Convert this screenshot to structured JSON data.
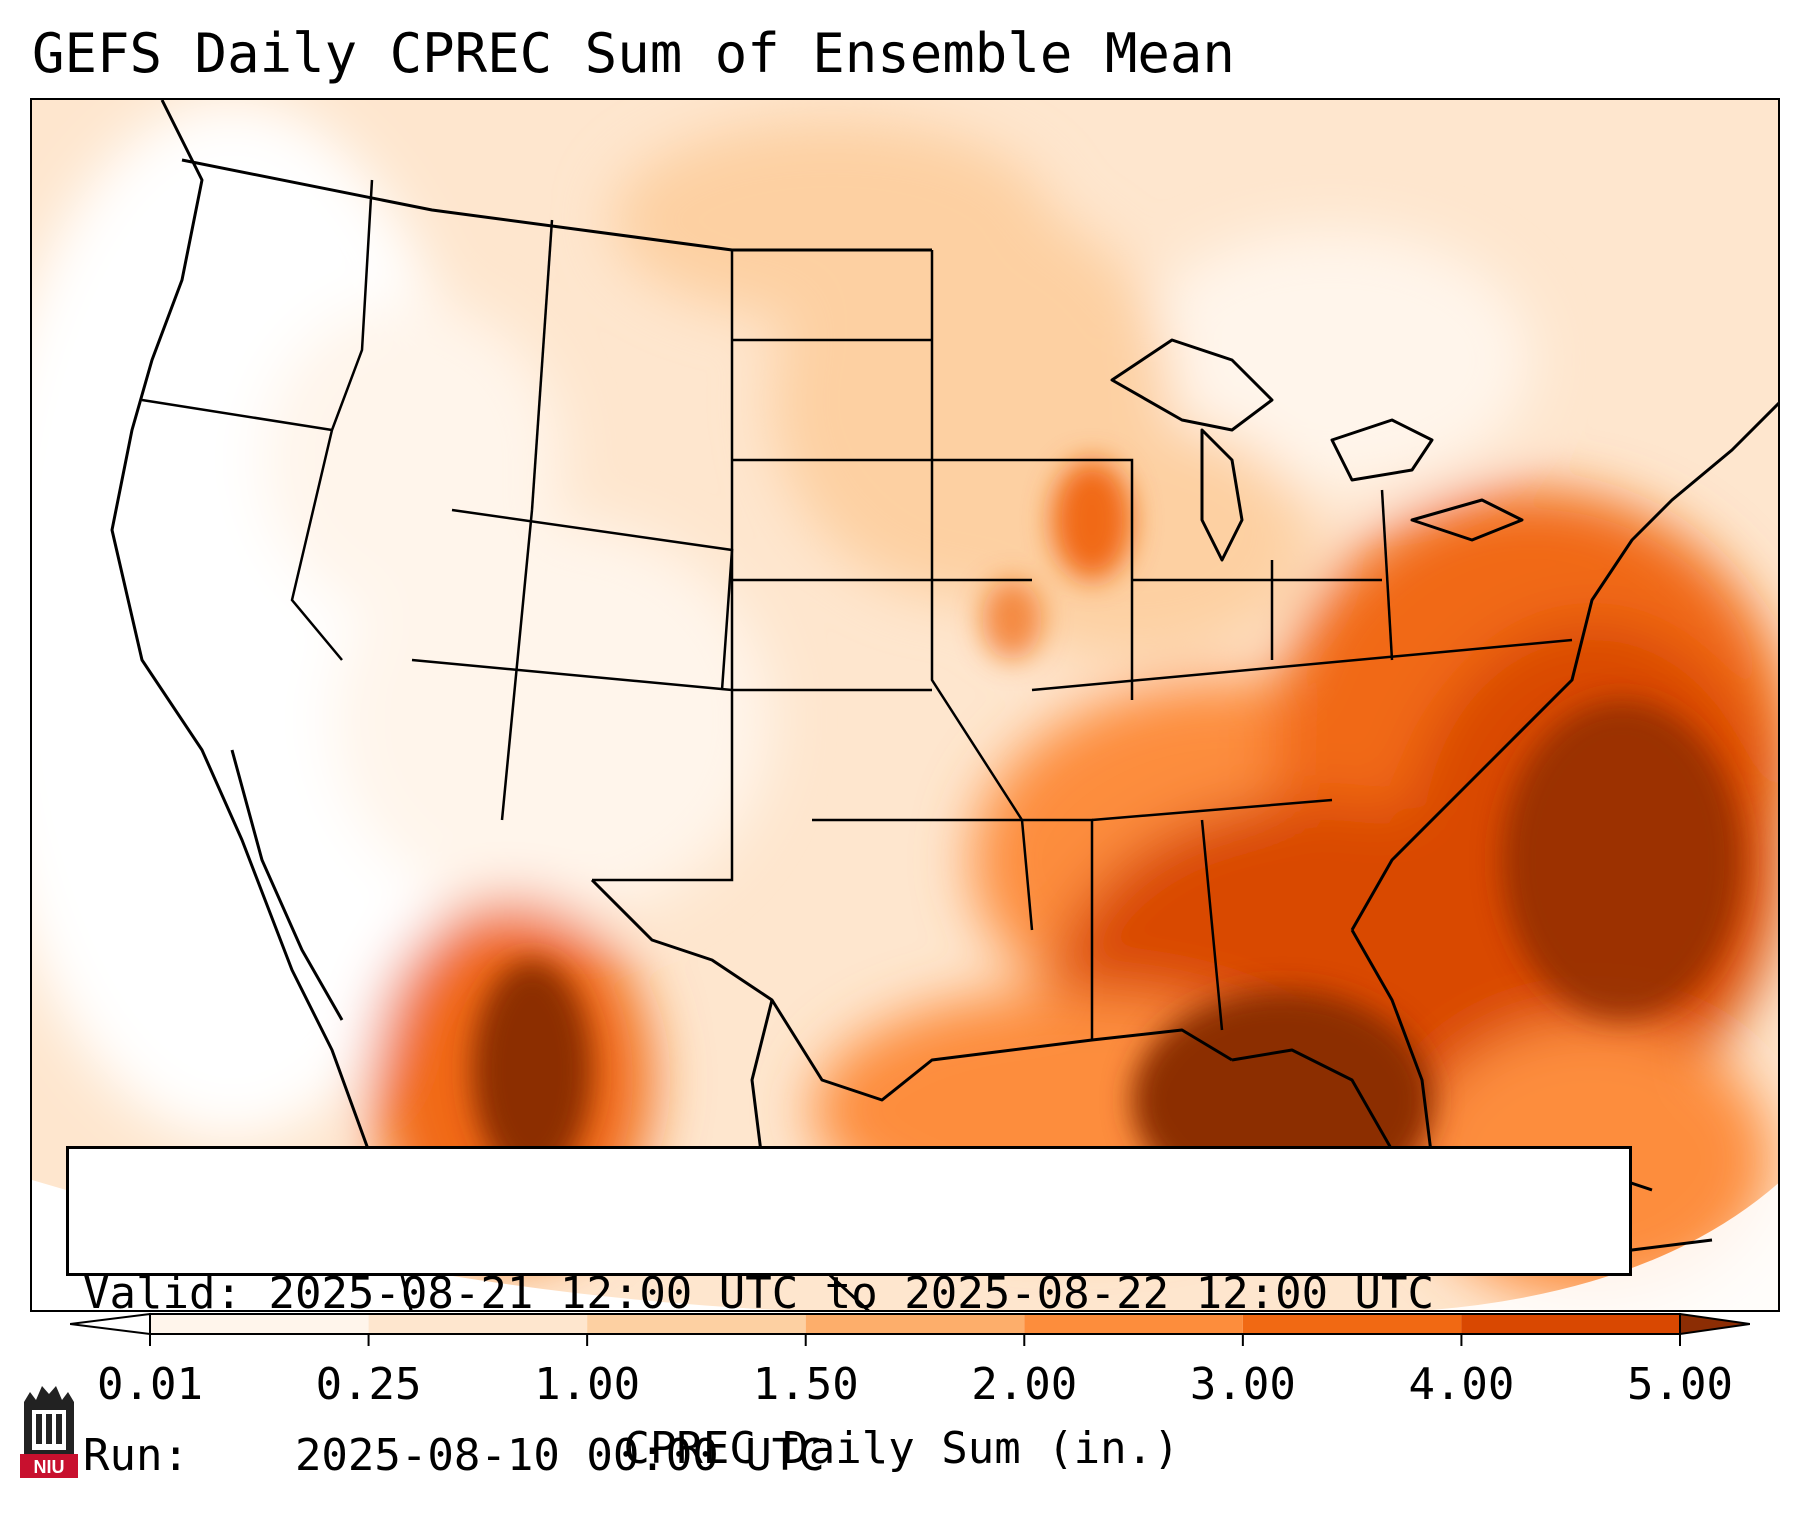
{
  "title": "GEFS Daily CPREC Sum of Ensemble Mean",
  "info": {
    "valid_label": "Valid:",
    "valid_value": "2025-08-21 12:00 UTC to 2025-08-22 12:00 UTC",
    "run_label": "Run:",
    "run_value": "2025-08-10 00:00 UTC"
  },
  "colorbar": {
    "label": "CPREC Daily Sum (in.)",
    "ticks": [
      "0.01",
      "0.25",
      "1.00",
      "1.50",
      "2.00",
      "3.00",
      "4.00",
      "5.00"
    ],
    "colors": [
      "#fff5eb",
      "#fee6ce",
      "#fdd0a2",
      "#fdae6b",
      "#fd8d3c",
      "#f16913",
      "#d94801",
      "#8c2d04"
    ],
    "extend": "both"
  },
  "logo": {
    "text": "NIU",
    "color": "#c8102e"
  }
}
